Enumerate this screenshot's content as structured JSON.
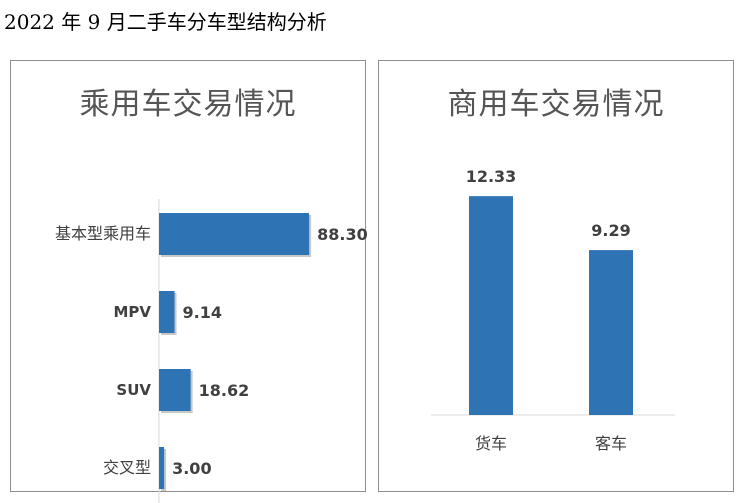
{
  "page": {
    "heading": "2022 年 9 月二手车分车型结构分析"
  },
  "colors": {
    "bar": "#2e74b5",
    "bar_shadow": "#9a9a9a",
    "text": "#404040",
    "title": "#555555",
    "baseline": "#d9d9d9"
  },
  "chart_data": [
    {
      "type": "bar",
      "orientation": "horizontal",
      "title": "乘用车交易情况",
      "categories": [
        "基本型乘用车",
        "MPV",
        "SUV",
        "交叉型"
      ],
      "values": [
        88.3,
        9.14,
        18.62,
        3.0
      ],
      "value_labels": [
        "88.30",
        "9.14",
        "18.62",
        "3.00"
      ],
      "xlim": [
        0,
        100
      ],
      "grid": false,
      "legend": "none"
    },
    {
      "type": "bar",
      "orientation": "vertical",
      "title": "商用车交易情况",
      "categories": [
        "货车",
        "客车"
      ],
      "values": [
        12.33,
        9.29
      ],
      "value_labels": [
        "12.33",
        "9.29"
      ],
      "ylim": [
        0,
        16
      ],
      "grid": false,
      "legend": "none"
    }
  ]
}
